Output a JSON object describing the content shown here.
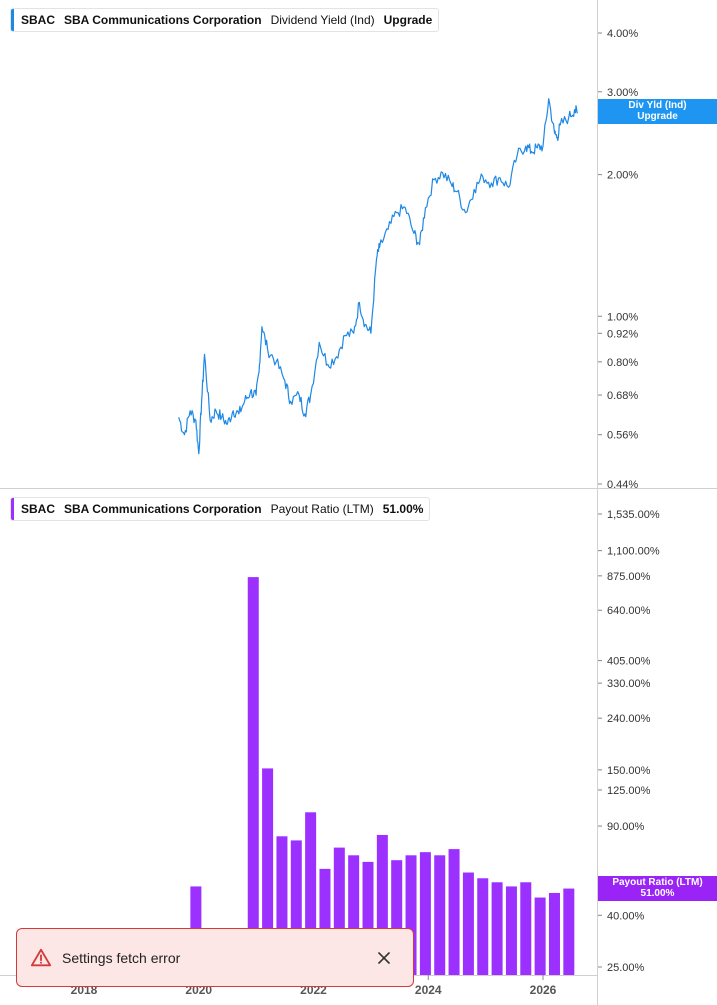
{
  "chart_data": [
    {
      "type": "line",
      "ticker": "SBAC",
      "company": "SBA Communications Corporation",
      "metric": "Dividend Yield (Ind)",
      "value_label": "Upgrade",
      "tag_lines": [
        "Div Yld (Ind)",
        "Upgrade"
      ],
      "y_scale": "log",
      "y_ticks": [
        {
          "v": 4.0,
          "label": "4.00%"
        },
        {
          "v": 3.0,
          "label": "3.00%"
        },
        {
          "v": 2.0,
          "label": "2.00%"
        },
        {
          "v": 1.0,
          "label": "1.00%"
        },
        {
          "v": 0.92,
          "label": "0.92%"
        },
        {
          "v": 0.8,
          "label": "0.80%"
        },
        {
          "v": 0.68,
          "label": "0.68%"
        },
        {
          "v": 0.56,
          "label": "0.56%"
        },
        {
          "v": 0.44,
          "label": "0.44%"
        }
      ],
      "color": "#1e88e5",
      "series": [
        {
          "x": [
            2019.65,
            2019.75,
            2019.85,
            2019.95,
            2020.0,
            2020.05,
            2020.1,
            2020.2,
            2020.3,
            2020.4,
            2020.5,
            2020.6,
            2020.7,
            2020.8,
            2020.9,
            2021.0,
            2021.05,
            2021.1,
            2021.2,
            2021.35,
            2021.5,
            2021.6,
            2021.75,
            2021.85,
            2021.95,
            2022.1,
            2022.25,
            2022.4,
            2022.55,
            2022.7,
            2022.8,
            2022.9,
            2023.0,
            2023.1,
            2023.15,
            2023.3,
            2023.45,
            2023.6,
            2023.75,
            2023.85,
            2023.95,
            2024.1,
            2024.25,
            2024.4,
            2024.5,
            2024.65,
            2024.8,
            2024.95,
            2025.1,
            2025.25,
            2025.4,
            2025.55,
            2025.7,
            2025.8,
            2025.9,
            2026.0,
            2026.1,
            2026.2,
            2026.25,
            2026.3,
            2026.45,
            2026.55,
            2026.6
          ],
          "y": [
            0.61,
            0.56,
            0.63,
            0.6,
            0.51,
            0.66,
            0.83,
            0.6,
            0.63,
            0.61,
            0.59,
            0.63,
            0.62,
            0.66,
            0.69,
            0.68,
            0.76,
            0.95,
            0.85,
            0.8,
            0.73,
            0.66,
            0.68,
            0.62,
            0.68,
            0.88,
            0.79,
            0.82,
            0.91,
            0.92,
            1.07,
            0.96,
            0.92,
            1.33,
            1.4,
            1.53,
            1.66,
            1.7,
            1.5,
            1.42,
            1.7,
            1.95,
            2.02,
            1.91,
            1.84,
            1.66,
            1.86,
            1.98,
            1.92,
            1.97,
            1.88,
            2.2,
            2.3,
            2.24,
            2.28,
            2.3,
            2.9,
            2.45,
            2.4,
            2.55,
            2.65,
            2.75,
            2.7
          ]
        }
      ]
    },
    {
      "type": "bar",
      "ticker": "SBAC",
      "company": "SBA Communications Corporation",
      "metric": "Payout Ratio (LTM)",
      "value_label": "51.00%",
      "tag_lines": [
        "Payout Ratio (LTM)",
        "51.00%"
      ],
      "y_scale": "log",
      "y_ticks": [
        {
          "v": 1535,
          "label": "1,535.00%"
        },
        {
          "v": 1100,
          "label": "1,100.00%"
        },
        {
          "v": 875,
          "label": "875.00%"
        },
        {
          "v": 640,
          "label": "640.00%"
        },
        {
          "v": 405,
          "label": "405.00%"
        },
        {
          "v": 330,
          "label": "330.00%"
        },
        {
          "v": 240,
          "label": "240.00%"
        },
        {
          "v": 150,
          "label": "150.00%"
        },
        {
          "v": 125,
          "label": "125.00%"
        },
        {
          "v": 90,
          "label": "90.00%"
        },
        {
          "v": 40,
          "label": "40.00%"
        },
        {
          "v": 25,
          "label": "25.00%"
        }
      ],
      "color": "#9b30ff",
      "x": [
        2019.95,
        2020.95,
        2021.2,
        2021.45,
        2021.7,
        2021.95,
        2022.2,
        2022.45,
        2022.7,
        2022.95,
        2023.2,
        2023.45,
        2023.7,
        2023.95,
        2024.2,
        2024.45,
        2024.7,
        2024.95,
        2025.2,
        2025.45,
        2025.7,
        2025.95,
        2026.2,
        2026.45
      ],
      "values": [
        52,
        865,
        152,
        82,
        79,
        102,
        61,
        74,
        69,
        65,
        83,
        66,
        69,
        71,
        69,
        73,
        59,
        56,
        54,
        52,
        54,
        47,
        49,
        51
      ]
    }
  ],
  "x_axis": {
    "ticks": [
      {
        "v": 2018,
        "label": "2018"
      },
      {
        "v": 2020,
        "label": "2020"
      },
      {
        "v": 2022,
        "label": "2022"
      },
      {
        "v": 2024,
        "label": "2024"
      },
      {
        "v": 2026,
        "label": "2026"
      }
    ]
  },
  "toast": {
    "message": "Settings fetch error",
    "icon": "warning-icon",
    "close_icon": "close-icon"
  }
}
